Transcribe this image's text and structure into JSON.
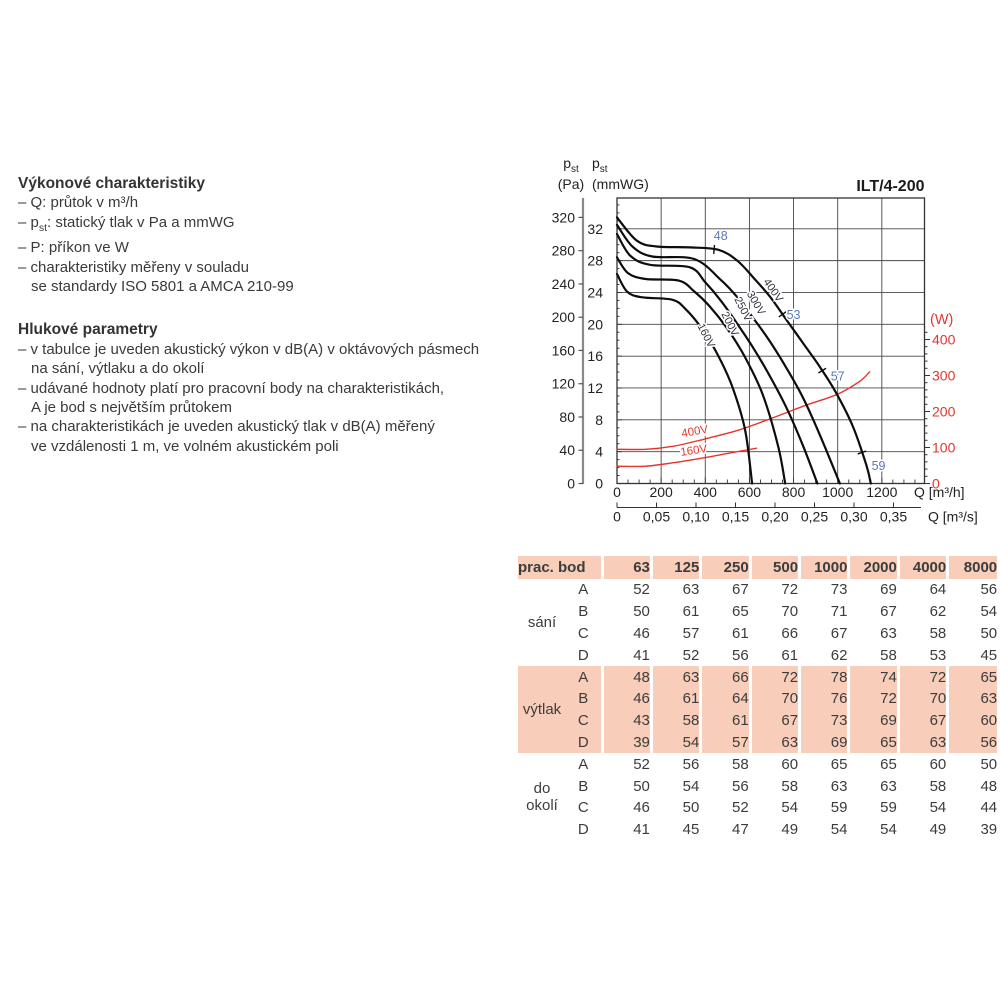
{
  "accent": {
    "salmon": "#f8cdb9",
    "red": "#e5352b",
    "blue": "#5c79b4",
    "ink": "#3a3a3a"
  },
  "left_panel": {
    "performance": {
      "title": "Výkonové charakteristiky",
      "lines": [
        {
          "parts": [
            {
              "t": "– Q: průtok v m³/h"
            }
          ]
        },
        {
          "parts": [
            {
              "t": "– p"
            },
            {
              "t": "st",
              "sub": true
            },
            {
              "t": ": statický tlak v Pa a mmWG"
            }
          ]
        },
        {
          "parts": [
            {
              "t": "– P: příkon ve W"
            }
          ]
        },
        {
          "parts": [
            {
              "t": "– charakteristiky měřeny v souladu"
            }
          ]
        },
        {
          "indent": true,
          "parts": [
            {
              "t": "se standardy ISO 5801 a AMCA 210-99"
            }
          ]
        }
      ]
    },
    "noise": {
      "title": "Hlukové parametry",
      "lines": [
        {
          "parts": [
            {
              "t": "– v tabulce je uveden akustický výkon v dB(A) v oktávových pásmech"
            }
          ]
        },
        {
          "indent": true,
          "parts": [
            {
              "t": "na sání, výtlaku a do okolí"
            }
          ]
        },
        {
          "parts": [
            {
              "t": "– udávané hodnoty platí pro pracovní body na charakteristikách,"
            }
          ]
        },
        {
          "indent": true,
          "parts": [
            {
              "t": "A je bod s největším průtokem"
            }
          ]
        },
        {
          "parts": [
            {
              "t": "– na charakteristikách je uveden akustický tlak v dB(A) měřený"
            }
          ]
        },
        {
          "indent": true,
          "parts": [
            {
              "t": "ve vzdálenosti 1 m, ve volném akustickém poli"
            }
          ]
        }
      ]
    }
  },
  "chart_data": {
    "type": "line",
    "title": "ILT/4-200",
    "x_axis": {
      "label": "Q [m³/h]",
      "ticks": [
        0,
        200,
        400,
        600,
        800,
        1000,
        1200
      ],
      "minor_step": 50,
      "range": [
        0,
        1393
      ]
    },
    "x_axis_secondary": {
      "label": "Q [m³/s]",
      "tick_labels": [
        "0",
        "0,05",
        "0,10",
        "0,15",
        "0,20",
        "0,25",
        "0,30",
        "0,35"
      ],
      "tick_values": [
        0,
        0.05,
        0.1,
        0.15,
        0.2,
        0.25,
        0.3,
        0.35
      ]
    },
    "y_axis_pa": {
      "title_main": "p",
      "title_sub": "st",
      "title_unit": "(Pa)",
      "ticks": [
        0,
        40,
        80,
        120,
        160,
        200,
        240,
        280,
        320
      ]
    },
    "y_axis_mmwg": {
      "title_main": "p",
      "title_sub": "st",
      "title_unit": "(mmWG)",
      "ticks": [
        0,
        4,
        8,
        12,
        16,
        20,
        24,
        28,
        32
      ],
      "minor_step": 1
    },
    "y_axis_power": {
      "label": "(W)",
      "ticks": [
        0,
        100,
        200,
        300,
        400
      ],
      "minor_step": 20,
      "color": "#e5352b"
    },
    "pressure_curves": [
      {
        "name": "160V",
        "color": "#0d0d0d",
        "label": {
          "q": 390,
          "pa": 176,
          "rot": 63
        },
        "points": [
          [
            0,
            252
          ],
          [
            45,
            231
          ],
          [
            110,
            224
          ],
          [
            250,
            221
          ],
          [
            310,
            210
          ],
          [
            380,
            188
          ],
          [
            450,
            158
          ],
          [
            520,
            118
          ],
          [
            580,
            65
          ],
          [
            612,
            0
          ]
        ]
      },
      {
        "name": "200V",
        "color": "#0d0d0d",
        "label": {
          "q": 498,
          "pa": 190,
          "rot": 63
        },
        "points": [
          [
            0,
            272
          ],
          [
            50,
            253
          ],
          [
            130,
            246
          ],
          [
            280,
            244
          ],
          [
            350,
            231
          ],
          [
            420,
            213
          ],
          [
            500,
            186
          ],
          [
            580,
            152
          ],
          [
            660,
            107
          ],
          [
            730,
            45
          ],
          [
            762,
            0
          ]
        ]
      },
      {
        "name": "250V",
        "color": "#0d0d0d",
        "label": {
          "q": 557,
          "pa": 208,
          "rot": 63
        },
        "points": [
          [
            0,
            300
          ],
          [
            60,
            274
          ],
          [
            150,
            263
          ],
          [
            330,
            260
          ],
          [
            400,
            242
          ],
          [
            470,
            220
          ],
          [
            545,
            192
          ],
          [
            620,
            162
          ],
          [
            695,
            128
          ],
          [
            770,
            90
          ],
          [
            845,
            44
          ],
          [
            908,
            0
          ]
        ]
      },
      {
        "name": "300V",
        "color": "#0d0d0d",
        "label": {
          "q": 616,
          "pa": 215,
          "rot": 60
        },
        "points": [
          [
            0,
            311
          ],
          [
            70,
            285
          ],
          [
            160,
            273
          ],
          [
            350,
            270
          ],
          [
            470,
            245
          ],
          [
            545,
            224
          ],
          [
            620,
            198
          ],
          [
            695,
            170
          ],
          [
            770,
            138
          ],
          [
            845,
            102
          ],
          [
            920,
            58
          ],
          [
            1010,
            0
          ]
        ]
      },
      {
        "name": "400V",
        "color": "#0d0d0d",
        "label": {
          "q": 695,
          "pa": 230,
          "rot": 55
        },
        "markers": [
          440,
          750,
          930,
          1110
        ],
        "points": [
          [
            0,
            320
          ],
          [
            90,
            292
          ],
          [
            180,
            285
          ],
          [
            330,
            284
          ],
          [
            460,
            281
          ],
          [
            545,
            268
          ],
          [
            620,
            247
          ],
          [
            695,
            224
          ],
          [
            770,
            196
          ],
          [
            845,
            168
          ],
          [
            920,
            140
          ],
          [
            995,
            108
          ],
          [
            1070,
            68
          ],
          [
            1130,
            22
          ],
          [
            1150,
            0
          ]
        ]
      }
    ],
    "power_curves": [
      {
        "name": "400V",
        "color": "#e5352b",
        "label": {
          "q": 355,
          "w": 135,
          "rot": -10
        },
        "points": [
          [
            0,
            95
          ],
          [
            130,
            95
          ],
          [
            260,
            104
          ],
          [
            400,
            124
          ],
          [
            550,
            148
          ],
          [
            700,
            181
          ],
          [
            850,
            216
          ],
          [
            1000,
            248
          ],
          [
            1100,
            284
          ],
          [
            1145,
            310
          ]
        ]
      },
      {
        "name": "160V",
        "color": "#e5352b",
        "label": {
          "q": 350,
          "w": 82,
          "rot": -8
        },
        "points": [
          [
            0,
            48
          ],
          [
            130,
            48
          ],
          [
            260,
            58
          ],
          [
            380,
            70
          ],
          [
            480,
            81
          ],
          [
            560,
            90
          ],
          [
            632,
            98
          ]
        ]
      }
    ],
    "point_labels": [
      {
        "text": "48",
        "q": 470,
        "pa": 293
      },
      {
        "text": "53",
        "q": 800,
        "pa": 198
      },
      {
        "text": "57",
        "q": 1000,
        "pa": 124
      },
      {
        "text": "59",
        "q": 1185,
        "pa": 16
      }
    ],
    "point_label_color": "#5c79b4"
  },
  "table": {
    "header": [
      "prac. bod",
      "63",
      "125",
      "250",
      "500",
      "1000",
      "2000",
      "4000",
      "8000"
    ],
    "groups": [
      {
        "label": "sání",
        "highlight": false,
        "rows": [
          {
            "point": "A",
            "values": [
              52,
              63,
              67,
              72,
              73,
              69,
              64,
              56
            ]
          },
          {
            "point": "B",
            "values": [
              50,
              61,
              65,
              70,
              71,
              67,
              62,
              54
            ]
          },
          {
            "point": "C",
            "values": [
              46,
              57,
              61,
              66,
              67,
              63,
              58,
              50
            ]
          },
          {
            "point": "D",
            "values": [
              41,
              52,
              56,
              61,
              62,
              58,
              53,
              45
            ]
          }
        ]
      },
      {
        "label": "výtlak",
        "highlight": true,
        "rows": [
          {
            "point": "A",
            "values": [
              48,
              63,
              66,
              72,
              78,
              74,
              72,
              65
            ]
          },
          {
            "point": "B",
            "values": [
              46,
              61,
              64,
              70,
              76,
              72,
              70,
              63
            ]
          },
          {
            "point": "C",
            "values": [
              43,
              58,
              61,
              67,
              73,
              69,
              67,
              60
            ]
          },
          {
            "point": "D",
            "values": [
              39,
              54,
              57,
              63,
              69,
              65,
              63,
              56
            ]
          }
        ]
      },
      {
        "label": "do okolí",
        "highlight": false,
        "rows": [
          {
            "point": "A",
            "values": [
              52,
              56,
              58,
              60,
              65,
              65,
              60,
              50
            ]
          },
          {
            "point": "B",
            "values": [
              50,
              54,
              56,
              58,
              63,
              63,
              58,
              48
            ]
          },
          {
            "point": "C",
            "values": [
              46,
              50,
              52,
              54,
              59,
              59,
              54,
              44
            ]
          },
          {
            "point": "D",
            "values": [
              41,
              45,
              47,
              49,
              54,
              54,
              49,
              39
            ]
          }
        ]
      }
    ]
  }
}
